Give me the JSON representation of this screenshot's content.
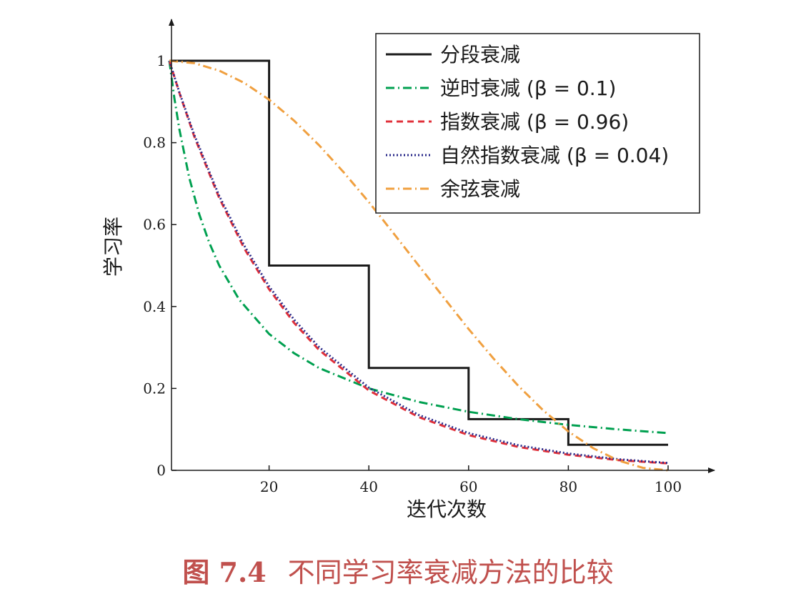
{
  "chart_data": {
    "type": "line",
    "xlabel": "迭代次数",
    "ylabel": "学习率",
    "xlim": [
      0,
      100
    ],
    "ylim": [
      0,
      1
    ],
    "x_ticks": [
      20,
      40,
      60,
      80,
      100
    ],
    "y_ticks": [
      0,
      0.2,
      0.4,
      0.6,
      0.8,
      1
    ],
    "y_tick_labels": [
      "0",
      "0.2",
      "0.4",
      "0.6",
      "0.8",
      "1"
    ],
    "grid": false,
    "legend_position": "top-right",
    "series": [
      {
        "name": "分段衰减",
        "color": "#1a1a1a",
        "dash": "solid",
        "x": [
          0,
          20,
          20,
          40,
          40,
          60,
          60,
          80,
          80,
          100
        ],
        "y": [
          1,
          1,
          0.5,
          0.5,
          0.25,
          0.25,
          0.125,
          0.125,
          0.0625,
          0.0625
        ]
      },
      {
        "name": "逆时衰减 (β = 0.1)",
        "color": "#00a050",
        "dash": "dashdot",
        "x": [
          0,
          1,
          2,
          4,
          6,
          8,
          10,
          14,
          20,
          25,
          30,
          40,
          50,
          60,
          70,
          80,
          90,
          100
        ],
        "y": [
          1,
          0.909,
          0.833,
          0.714,
          0.625,
          0.556,
          0.5,
          0.417,
          0.333,
          0.286,
          0.25,
          0.2,
          0.167,
          0.143,
          0.125,
          0.111,
          0.1,
          0.091
        ]
      },
      {
        "name": "指数衰减 (β = 0.96)",
        "color": "#e0303a",
        "dash": "dashed",
        "x": [
          0,
          2,
          5,
          10,
          15,
          20,
          25,
          30,
          40,
          50,
          60,
          70,
          80,
          90,
          100
        ],
        "y": [
          1,
          0.922,
          0.815,
          0.665,
          0.542,
          0.442,
          0.36,
          0.294,
          0.195,
          0.13,
          0.086,
          0.057,
          0.038,
          0.025,
          0.017
        ]
      },
      {
        "name": "自然指数衰减 (β = 0.04)",
        "color": "#2a2a8a",
        "dash": "dotted",
        "x": [
          0,
          2,
          5,
          10,
          15,
          20,
          25,
          30,
          40,
          50,
          60,
          70,
          80,
          90,
          100
        ],
        "y": [
          1,
          0.923,
          0.819,
          0.67,
          0.549,
          0.449,
          0.368,
          0.301,
          0.202,
          0.135,
          0.091,
          0.061,
          0.041,
          0.027,
          0.018
        ]
      },
      {
        "name": "余弦衰减",
        "color": "#f0a040",
        "dash": "dashdot",
        "x": [
          0,
          5,
          10,
          15,
          20,
          25,
          30,
          35,
          40,
          45,
          50,
          55,
          60,
          65,
          70,
          75,
          80,
          85,
          90,
          95,
          100
        ],
        "y": [
          1,
          0.994,
          0.976,
          0.946,
          0.905,
          0.854,
          0.794,
          0.727,
          0.655,
          0.578,
          0.5,
          0.422,
          0.345,
          0.273,
          0.206,
          0.146,
          0.095,
          0.054,
          0.024,
          0.006,
          0
        ]
      }
    ]
  },
  "caption": {
    "number": "图 7.4",
    "text": "不同学习率衰减方法的比较"
  }
}
